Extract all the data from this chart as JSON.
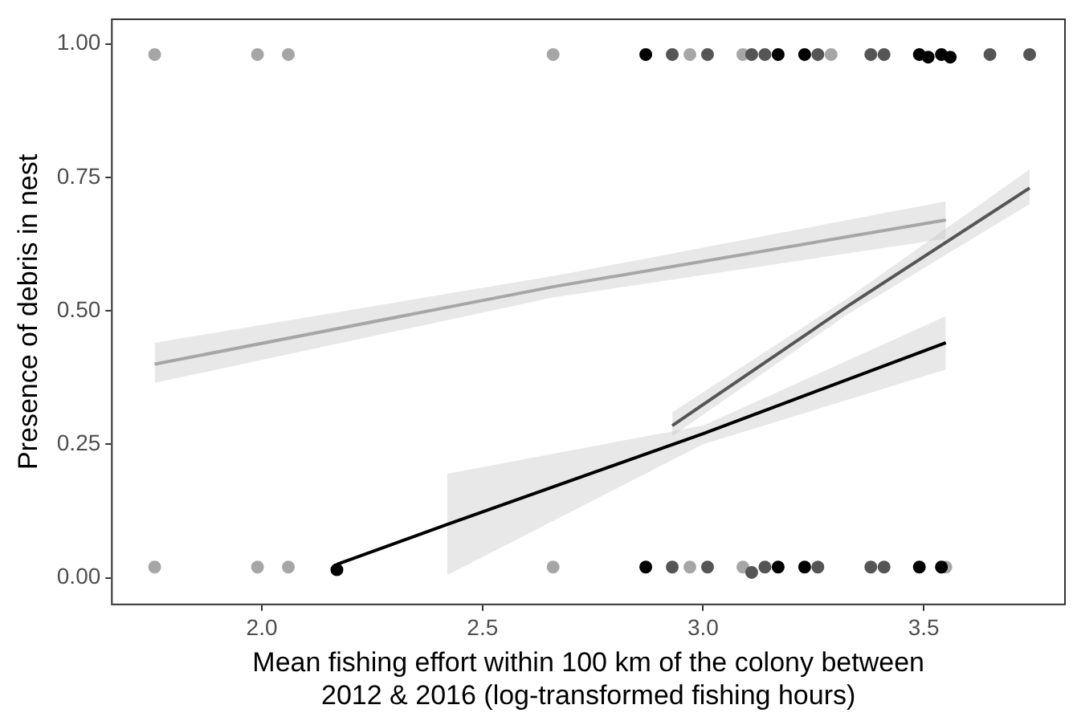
{
  "chart_data": {
    "type": "scatter",
    "xlabel": "Mean fishing effort within 100 km of the colony between\n2012 & 2016 (log-transformed fishing hours)",
    "ylabel": "Presence of debris in nest",
    "xlim": [
      1.66,
      3.82
    ],
    "xticks": [
      {
        "value": 2,
        "label": "2.0"
      },
      {
        "value": 2.5,
        "label": "2.5"
      },
      {
        "value": 3,
        "label": "3.0"
      },
      {
        "value": 3.5,
        "label": "3.5"
      }
    ],
    "ylim": [
      -0.05,
      1.046
    ],
    "yticks": [
      {
        "value": 0,
        "label": "0.00"
      },
      {
        "value": 0.25,
        "label": "0.25"
      },
      {
        "value": 0.5,
        "label": "0.50"
      },
      {
        "value": 0.75,
        "label": "0.75"
      },
      {
        "value": 1,
        "label": "1.00"
      }
    ],
    "grid": false,
    "legend": false,
    "series": [
      {
        "color": "#a6a6a6",
        "marker": "circle",
        "x": [
          1.757,
          1.99,
          2.06,
          2.66,
          2.97,
          3.09,
          3.29,
          1.757,
          1.99,
          2.06,
          2.66,
          2.97,
          3.09,
          3.55
        ],
        "values": [
          0.98,
          0.98,
          0.98,
          0.98,
          0.98,
          0.98,
          0.98,
          0.02,
          0.02,
          0.02,
          0.02,
          0.02,
          0.02,
          0.02
        ]
      },
      {
        "color": "#555555",
        "marker": "circle",
        "x": [
          2.93,
          3.01,
          3.11,
          3.14,
          3.26,
          3.38,
          3.41,
          3.65,
          3.74,
          2.93,
          3.01,
          3.11,
          3.14,
          3.26,
          3.38,
          3.41
        ],
        "values": [
          0.98,
          0.98,
          0.98,
          0.98,
          0.98,
          0.98,
          0.98,
          0.98,
          0.98,
          0.02,
          0.02,
          0.01,
          0.02,
          0.02,
          0.02,
          0.02
        ]
      },
      {
        "color": "#000000",
        "marker": "circle",
        "x": [
          2.87,
          3.17,
          3.23,
          3.49,
          3.54,
          3.51,
          3.56,
          2.17,
          2.87,
          3.17,
          3.23,
          3.49,
          3.54
        ],
        "values": [
          0.98,
          0.98,
          0.98,
          0.98,
          0.98,
          0.975,
          0.975,
          0.015,
          0.02,
          0.02,
          0.02,
          0.02,
          0.02
        ]
      },
      {
        "type": "line",
        "color": "#a6a6a6",
        "marker": "none",
        "x": [
          1.757,
          2.66,
          3.55
        ],
        "values": [
          0.4,
          0.545,
          0.67
        ],
        "lower": [
          0.365,
          0.525,
          0.635
        ],
        "upper": [
          0.44,
          0.565,
          0.705
        ]
      },
      {
        "type": "line",
        "color": "#555555",
        "marker": "none",
        "x": [
          2.93,
          3.33,
          3.74
        ],
        "values": [
          0.285,
          0.51,
          0.73
        ],
        "lower": [
          0.265,
          0.495,
          0.7
        ],
        "upper": [
          0.31,
          0.525,
          0.765
        ]
      },
      {
        "type": "line",
        "color": "#000000",
        "marker": "none",
        "x": [
          2.17,
          2.42,
          3.0,
          3.55
        ],
        "values": [
          0.025,
          0.1,
          0.27,
          0.44
        ],
        "lower": [
          null,
          0.005,
          0.25,
          0.39
        ],
        "upper": [
          null,
          0.195,
          0.285,
          0.49
        ]
      }
    ]
  }
}
